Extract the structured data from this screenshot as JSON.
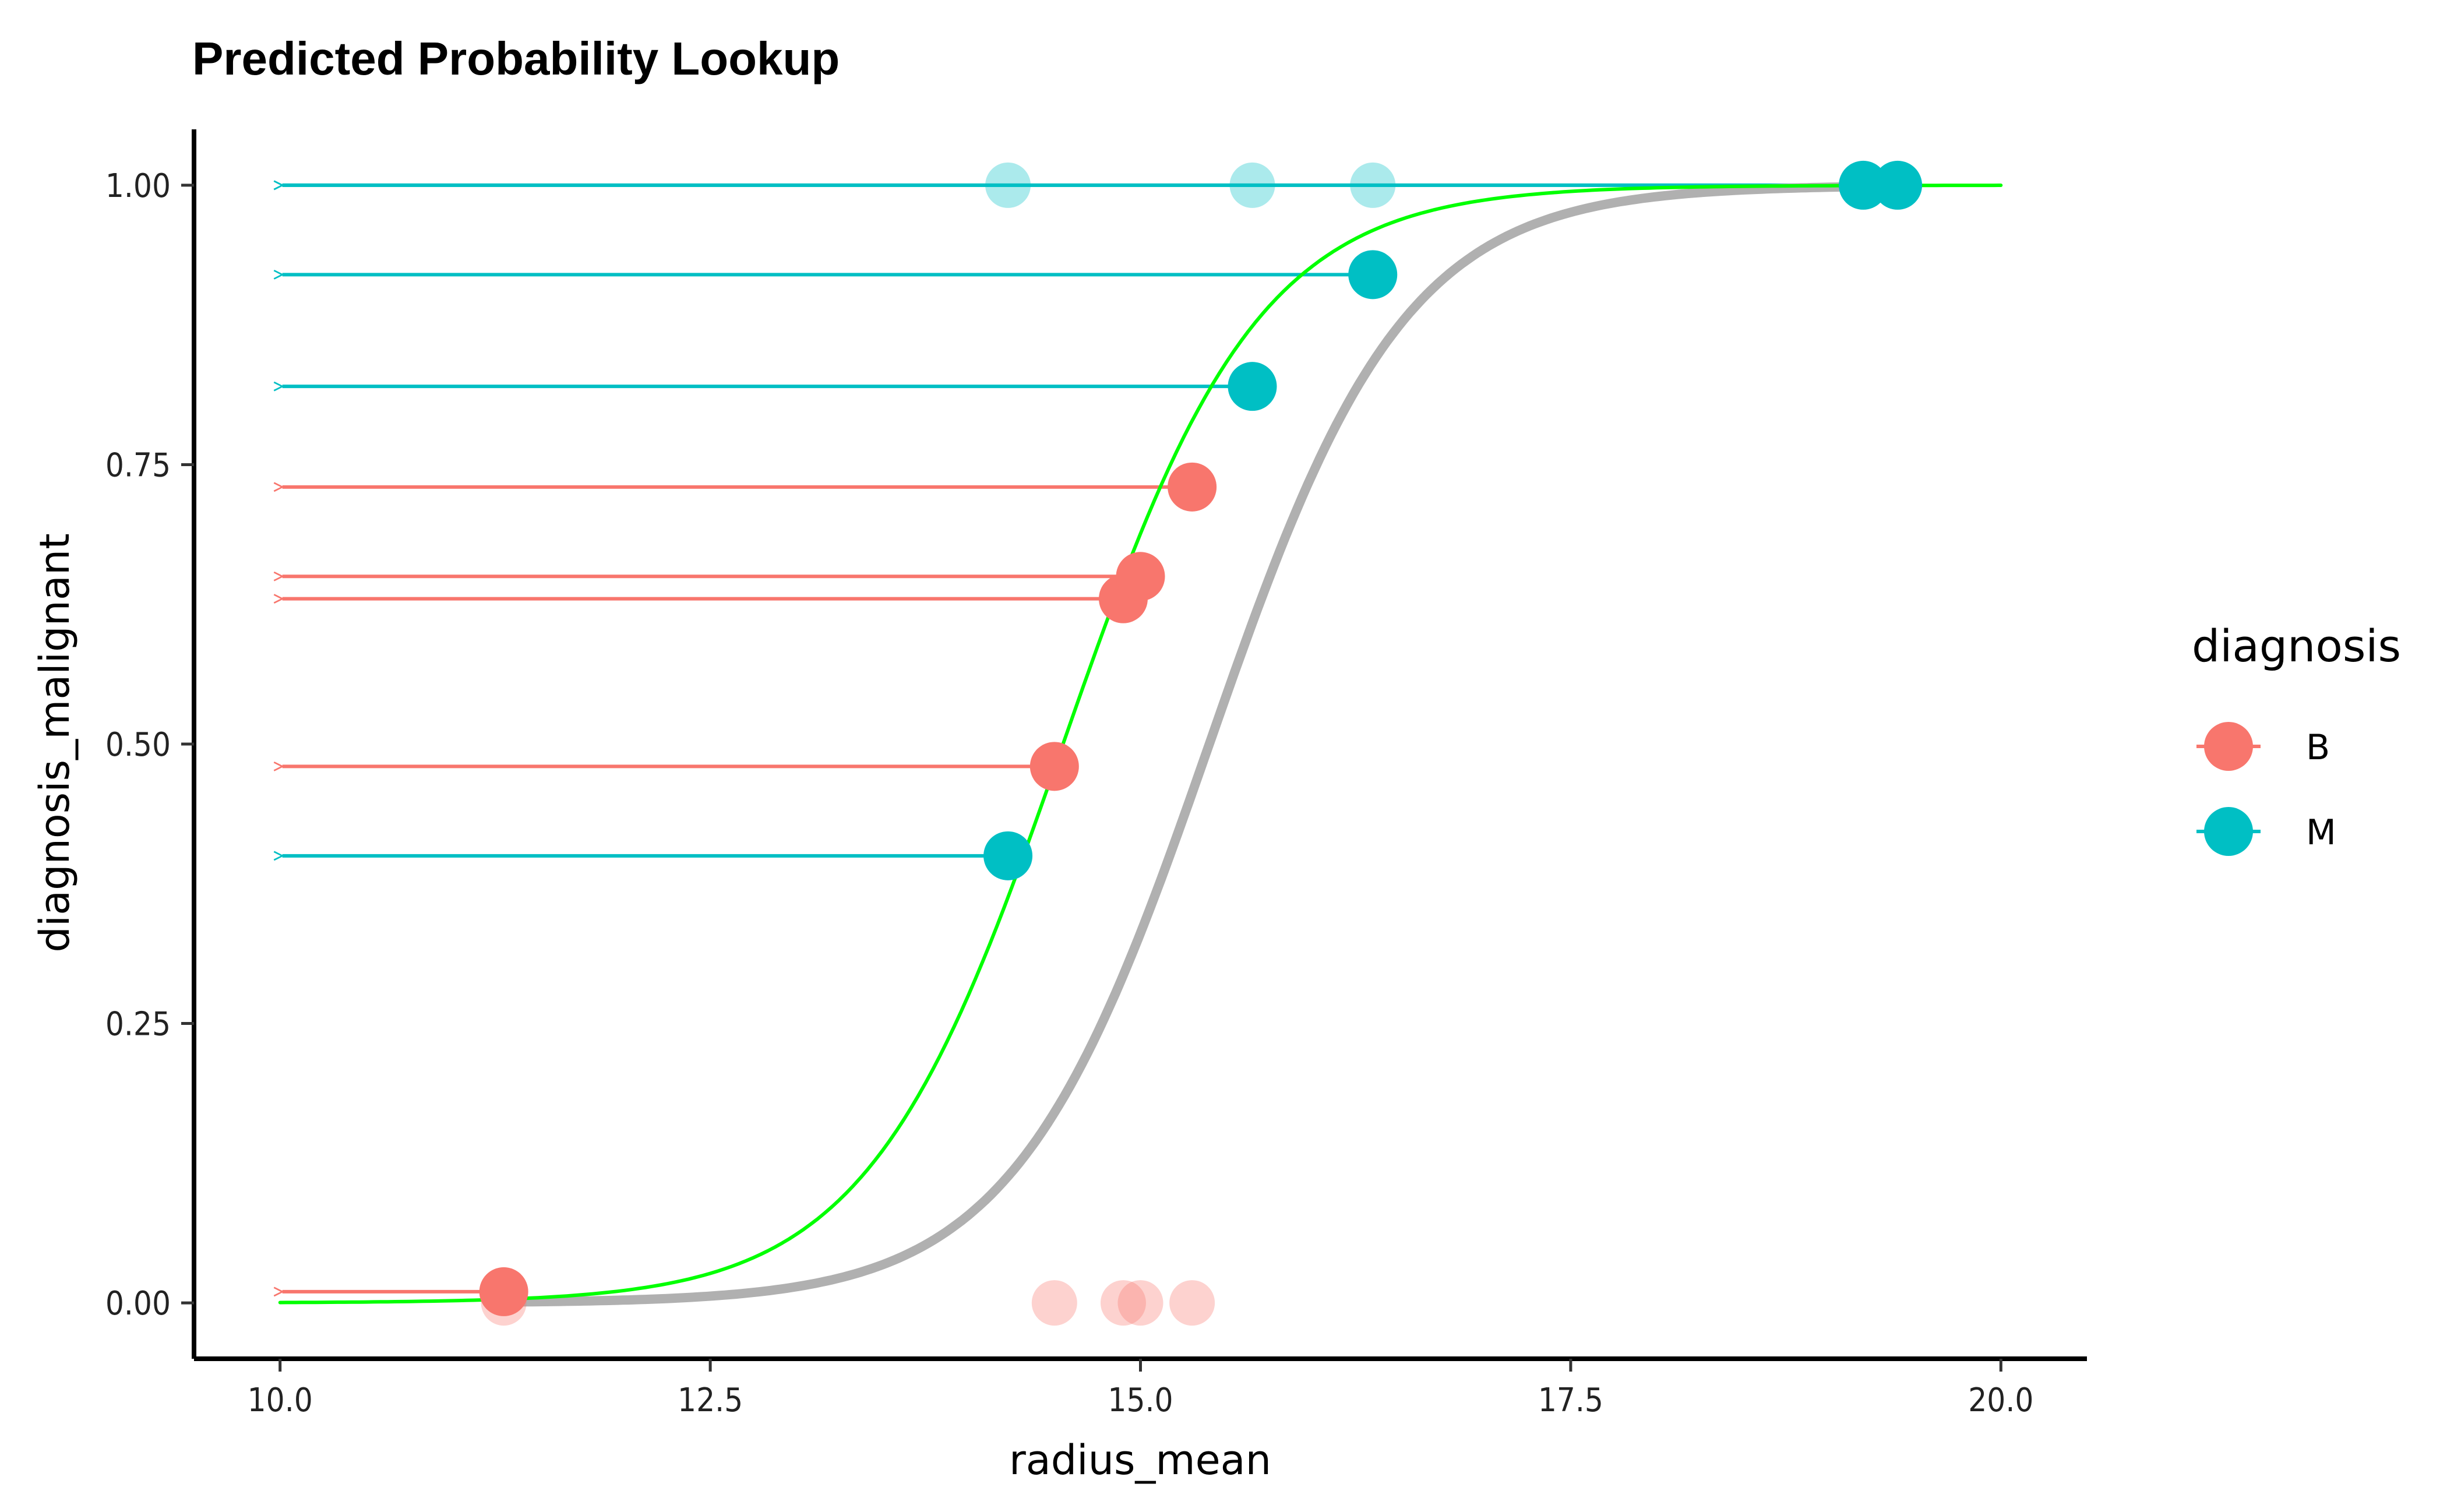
{
  "chart_data": {
    "type": "scatter",
    "title": "Predicted Probability Lookup",
    "xlabel": "radius_mean",
    "ylabel": "diagnosis_malignant",
    "xlim": [
      9.5,
      20.5
    ],
    "ylim": [
      -0.05,
      1.05
    ],
    "x_ticks": [
      10.0,
      12.5,
      15.0,
      17.5,
      20.0
    ],
    "x_tick_labels": [
      "10.0",
      "12.5",
      "15.0",
      "17.5",
      "20.0"
    ],
    "y_ticks": [
      0.0,
      0.25,
      0.5,
      0.75,
      1.0
    ],
    "y_tick_labels": [
      "0.00",
      "0.25",
      "0.50",
      "0.75",
      "1.00"
    ],
    "grid": false,
    "legend": {
      "title": "diagnosis",
      "position": "right",
      "entries": [
        {
          "label": "B",
          "color": "#F8766D"
        },
        {
          "label": "M",
          "color": "#00BFC4"
        }
      ]
    },
    "curves": [
      {
        "role": "fitted-logistic",
        "color": "#00FF00",
        "x_range": [
          10.0,
          20.0
        ],
        "midpoint": 14.55,
        "slope": 1.76
      },
      {
        "role": "reference-logistic",
        "color": "#B0B0B0",
        "x_range": [
          11.3,
          19.2
        ],
        "midpoint": 15.4,
        "slope": 1.76
      }
    ],
    "observed_points": [
      {
        "diagnosis": "B",
        "x": 11.3,
        "y": 0.0
      },
      {
        "diagnosis": "B",
        "x": 14.5,
        "y": 0.0
      },
      {
        "diagnosis": "B",
        "x": 14.9,
        "y": 0.0
      },
      {
        "diagnosis": "B",
        "x": 15.0,
        "y": 0.0
      },
      {
        "diagnosis": "B",
        "x": 15.3,
        "y": 0.0
      },
      {
        "diagnosis": "M",
        "x": 14.23,
        "y": 1.0
      },
      {
        "diagnosis": "M",
        "x": 15.65,
        "y": 1.0
      },
      {
        "diagnosis": "M",
        "x": 16.35,
        "y": 1.0
      },
      {
        "diagnosis": "M",
        "x": 19.2,
        "y": 1.0
      },
      {
        "diagnosis": "M",
        "x": 19.4,
        "y": 1.0
      }
    ],
    "predicted_points": [
      {
        "diagnosis": "B",
        "x": 11.3,
        "y": 0.01
      },
      {
        "diagnosis": "M",
        "x": 14.23,
        "y": 0.4
      },
      {
        "diagnosis": "B",
        "x": 14.5,
        "y": 0.48
      },
      {
        "diagnosis": "B",
        "x": 14.9,
        "y": 0.63
      },
      {
        "diagnosis": "B",
        "x": 15.0,
        "y": 0.65
      },
      {
        "diagnosis": "B",
        "x": 15.3,
        "y": 0.73
      },
      {
        "diagnosis": "M",
        "x": 15.65,
        "y": 0.82
      },
      {
        "diagnosis": "M",
        "x": 16.35,
        "y": 0.92
      },
      {
        "diagnosis": "M",
        "x": 19.2,
        "y": 1.0
      },
      {
        "diagnosis": "M",
        "x": 19.4,
        "y": 1.0
      }
    ],
    "arrows_to_x": 10.0
  }
}
